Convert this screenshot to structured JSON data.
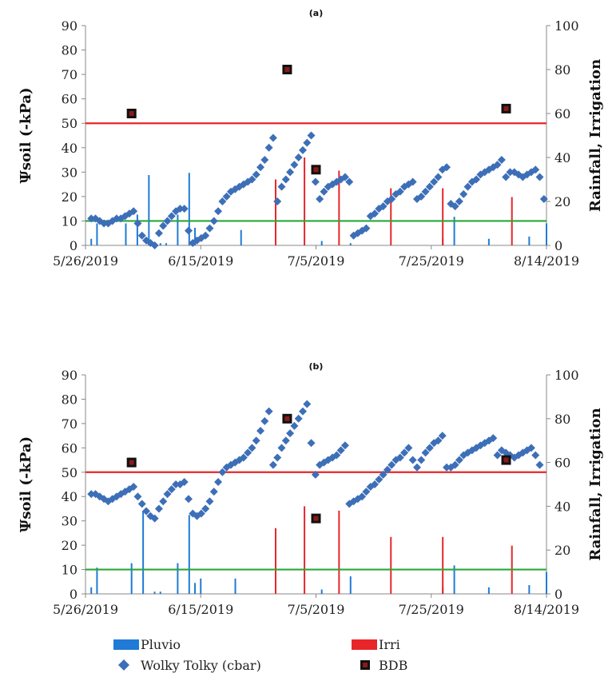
{
  "chart_data": [
    {
      "panel": "(a)",
      "type": "combo",
      "ylabel_left": "Ψsoil (-kPa)",
      "ylabel_right": "Rainfall, Irrigation",
      "x_ticks": [
        "5/26/2019",
        "6/15/2019",
        "7/5/2019",
        "7/25/2019",
        "8/14/2019"
      ],
      "xlim": [
        "2019-05-26",
        "2019-08-14"
      ],
      "ylim_left": [
        0,
        90
      ],
      "ylim_right": [
        0,
        100
      ],
      "y_ticks_left": [
        "0",
        "10",
        "20",
        "30",
        "40",
        "50",
        "60",
        "70",
        "80",
        "90"
      ],
      "y_ticks_right": [
        "0",
        "20",
        "40",
        "60",
        "80",
        "100"
      ],
      "hlines": [
        {
          "value": 50,
          "color": "#e8262a"
        },
        {
          "value": 10,
          "color": "#2aa63a"
        }
      ],
      "pluvio": [
        {
          "date": "2019-05-27",
          "value": 3
        },
        {
          "date": "2019-05-28",
          "value": 10
        },
        {
          "date": "2019-06-02",
          "value": 10
        },
        {
          "date": "2019-06-04",
          "value": 14
        },
        {
          "date": "2019-06-06",
          "value": 32
        },
        {
          "date": "2019-06-08",
          "value": 1
        },
        {
          "date": "2019-06-09",
          "value": 1
        },
        {
          "date": "2019-06-11",
          "value": 14
        },
        {
          "date": "2019-06-13",
          "value": 33
        },
        {
          "date": "2019-06-14",
          "value": 8
        },
        {
          "date": "2019-06-22",
          "value": 7
        },
        {
          "date": "2019-07-06",
          "value": 2
        },
        {
          "date": "2019-07-11",
          "value": 1
        },
        {
          "date": "2019-07-27",
          "value": 3
        },
        {
          "date": "2019-07-29",
          "value": 13
        },
        {
          "date": "2019-08-04",
          "value": 3
        },
        {
          "date": "2019-08-11",
          "value": 4
        },
        {
          "date": "2019-08-14",
          "value": 10
        }
      ],
      "irri": [
        {
          "date": "2019-06-28",
          "value": 30
        },
        {
          "date": "2019-07-03",
          "value": 40
        },
        {
          "date": "2019-07-09",
          "value": 34
        },
        {
          "date": "2019-07-18",
          "value": 26
        },
        {
          "date": "2019-07-27",
          "value": 26
        },
        {
          "date": "2019-08-08",
          "value": 22
        }
      ],
      "bdb": [
        {
          "date": "2019-06-03",
          "value": 54
        },
        {
          "date": "2019-06-30",
          "value": 72
        },
        {
          "date": "2019-07-05",
          "value": 31
        },
        {
          "date": "2019-08-07",
          "value": 56
        }
      ],
      "wolky": [
        [
          0,
          11
        ],
        [
          1,
          11
        ],
        [
          2,
          10
        ],
        [
          3,
          9
        ],
        [
          4,
          9
        ],
        [
          5,
          10
        ],
        [
          6,
          11
        ],
        [
          7,
          11
        ],
        [
          8,
          12
        ],
        [
          9,
          13
        ],
        [
          10,
          14
        ],
        [
          11,
          9
        ],
        [
          12,
          4
        ],
        [
          13,
          2
        ],
        [
          14,
          1
        ],
        [
          15,
          0
        ],
        [
          16,
          5
        ],
        [
          17,
          8
        ],
        [
          18,
          10
        ],
        [
          19,
          12
        ],
        [
          20,
          14
        ],
        [
          21,
          15
        ],
        [
          22,
          15
        ],
        [
          23,
          6
        ],
        [
          24,
          1
        ],
        [
          25,
          2
        ],
        [
          26,
          3
        ],
        [
          27,
          4
        ],
        [
          28,
          7
        ],
        [
          29,
          10
        ],
        [
          30,
          14
        ],
        [
          31,
          18
        ],
        [
          32,
          20
        ],
        [
          33,
          22
        ],
        [
          34,
          23
        ],
        [
          35,
          24
        ],
        [
          36,
          25
        ],
        [
          37,
          26
        ],
        [
          38,
          27
        ],
        [
          39,
          29
        ],
        [
          40,
          32
        ],
        [
          41,
          35
        ],
        [
          42,
          40
        ],
        [
          43,
          44
        ],
        [
          44,
          18
        ],
        [
          45,
          24
        ],
        [
          46,
          27
        ],
        [
          47,
          30
        ],
        [
          48,
          33
        ],
        [
          49,
          36
        ],
        [
          50,
          39
        ],
        [
          51,
          42
        ],
        [
          52,
          45
        ],
        [
          53,
          26
        ],
        [
          54,
          19
        ],
        [
          55,
          22
        ],
        [
          56,
          24
        ],
        [
          57,
          25
        ],
        [
          58,
          26
        ],
        [
          59,
          27
        ],
        [
          60,
          28
        ],
        [
          61,
          26
        ],
        [
          62,
          4
        ],
        [
          63,
          5
        ],
        [
          64,
          6
        ],
        [
          65,
          7
        ],
        [
          66,
          12
        ],
        [
          67,
          13
        ],
        [
          68,
          15
        ],
        [
          69,
          16
        ],
        [
          70,
          18
        ],
        [
          71,
          19
        ],
        [
          72,
          21
        ],
        [
          73,
          22
        ],
        [
          74,
          24
        ],
        [
          75,
          25
        ],
        [
          76,
          26
        ],
        [
          77,
          19
        ],
        [
          78,
          20
        ],
        [
          79,
          22
        ],
        [
          80,
          24
        ],
        [
          81,
          26
        ],
        [
          82,
          28
        ],
        [
          83,
          31
        ],
        [
          84,
          32
        ],
        [
          85,
          17
        ],
        [
          86,
          16
        ],
        [
          87,
          18
        ],
        [
          88,
          21
        ],
        [
          89,
          24
        ],
        [
          90,
          26
        ],
        [
          91,
          27
        ],
        [
          92,
          29
        ],
        [
          93,
          30
        ],
        [
          94,
          31
        ],
        [
          95,
          32
        ],
        [
          96,
          33
        ],
        [
          97,
          35
        ],
        [
          98,
          28
        ],
        [
          99,
          30
        ],
        [
          100,
          30
        ],
        [
          101,
          29
        ],
        [
          102,
          28
        ],
        [
          103,
          29
        ],
        [
          104,
          30
        ],
        [
          105,
          31
        ],
        [
          106,
          28
        ],
        [
          107,
          19
        ]
      ]
    },
    {
      "panel": "(b)",
      "type": "combo",
      "ylabel_left": "Ψsoil (-kPa)",
      "ylabel_right": "Rainfall, Irrigation",
      "x_ticks": [
        "5/26/2019",
        "6/15/2019",
        "7/5/2019",
        "7/25/2019",
        "8/14/2019"
      ],
      "xlim": [
        "2019-05-26",
        "2019-08-14"
      ],
      "ylim_left": [
        0,
        90
      ],
      "ylim_right": [
        0,
        100
      ],
      "y_ticks_left": [
        "0",
        "10",
        "20",
        "30",
        "40",
        "50",
        "60",
        "70",
        "80",
        "90"
      ],
      "y_ticks_right": [
        "0",
        "20",
        "40",
        "60",
        "80",
        "100"
      ],
      "hlines": [
        {
          "value": 50,
          "color": "#e8262a"
        },
        {
          "value": 10,
          "color": "#2aa63a"
        }
      ],
      "pluvio": [
        {
          "date": "2019-05-27",
          "value": 3
        },
        {
          "date": "2019-05-28",
          "value": 12
        },
        {
          "date": "2019-06-03",
          "value": 14
        },
        {
          "date": "2019-06-05",
          "value": 38
        },
        {
          "date": "2019-06-07",
          "value": 1
        },
        {
          "date": "2019-06-08",
          "value": 1
        },
        {
          "date": "2019-06-11",
          "value": 14
        },
        {
          "date": "2019-06-13",
          "value": 36
        },
        {
          "date": "2019-06-14",
          "value": 5
        },
        {
          "date": "2019-06-15",
          "value": 7
        },
        {
          "date": "2019-06-21",
          "value": 7
        },
        {
          "date": "2019-07-06",
          "value": 2
        },
        {
          "date": "2019-07-11",
          "value": 8
        },
        {
          "date": "2019-07-27",
          "value": 3
        },
        {
          "date": "2019-07-29",
          "value": 13
        },
        {
          "date": "2019-08-04",
          "value": 3
        },
        {
          "date": "2019-08-11",
          "value": 4
        },
        {
          "date": "2019-08-14",
          "value": 10
        }
      ],
      "irri": [
        {
          "date": "2019-06-28",
          "value": 30
        },
        {
          "date": "2019-07-03",
          "value": 40
        },
        {
          "date": "2019-07-09",
          "value": 38
        },
        {
          "date": "2019-07-18",
          "value": 26
        },
        {
          "date": "2019-07-27",
          "value": 26
        },
        {
          "date": "2019-08-08",
          "value": 22
        }
      ],
      "bdb": [
        {
          "date": "2019-06-03",
          "value": 54
        },
        {
          "date": "2019-06-30",
          "value": 72
        },
        {
          "date": "2019-07-05",
          "value": 31
        },
        {
          "date": "2019-08-07",
          "value": 55
        }
      ],
      "wolky": [
        [
          0,
          41
        ],
        [
          1,
          41
        ],
        [
          2,
          40
        ],
        [
          3,
          39
        ],
        [
          4,
          38
        ],
        [
          5,
          39
        ],
        [
          6,
          40
        ],
        [
          7,
          41
        ],
        [
          8,
          42
        ],
        [
          9,
          43
        ],
        [
          10,
          44
        ],
        [
          11,
          40
        ],
        [
          12,
          37
        ],
        [
          13,
          34
        ],
        [
          14,
          32
        ],
        [
          15,
          31
        ],
        [
          16,
          35
        ],
        [
          17,
          38
        ],
        [
          18,
          41
        ],
        [
          19,
          43
        ],
        [
          20,
          45
        ],
        [
          21,
          45
        ],
        [
          22,
          46
        ],
        [
          23,
          39
        ],
        [
          24,
          33
        ],
        [
          25,
          32
        ],
        [
          26,
          33
        ],
        [
          27,
          35
        ],
        [
          28,
          38
        ],
        [
          29,
          42
        ],
        [
          30,
          46
        ],
        [
          31,
          50
        ],
        [
          32,
          52
        ],
        [
          33,
          53
        ],
        [
          34,
          54
        ],
        [
          35,
          55
        ],
        [
          36,
          56
        ],
        [
          37,
          58
        ],
        [
          38,
          60
        ],
        [
          39,
          63
        ],
        [
          40,
          67
        ],
        [
          41,
          71
        ],
        [
          42,
          75
        ],
        [
          43,
          53
        ],
        [
          44,
          56
        ],
        [
          45,
          60
        ],
        [
          46,
          63
        ],
        [
          47,
          66
        ],
        [
          48,
          69
        ],
        [
          49,
          72
        ],
        [
          50,
          75
        ],
        [
          51,
          78
        ],
        [
          52,
          62
        ],
        [
          53,
          49
        ],
        [
          54,
          53
        ],
        [
          55,
          54
        ],
        [
          56,
          55
        ],
        [
          57,
          56
        ],
        [
          58,
          57
        ],
        [
          59,
          59
        ],
        [
          60,
          61
        ],
        [
          61,
          37
        ],
        [
          62,
          38
        ],
        [
          63,
          39
        ],
        [
          64,
          40
        ],
        [
          65,
          42
        ],
        [
          66,
          44
        ],
        [
          67,
          45
        ],
        [
          68,
          47
        ],
        [
          69,
          49
        ],
        [
          70,
          51
        ],
        [
          71,
          53
        ],
        [
          72,
          55
        ],
        [
          73,
          56
        ],
        [
          74,
          58
        ],
        [
          75,
          60
        ],
        [
          76,
          55
        ],
        [
          77,
          52
        ],
        [
          78,
          55
        ],
        [
          79,
          58
        ],
        [
          80,
          60
        ],
        [
          81,
          62
        ],
        [
          82,
          63
        ],
        [
          83,
          65
        ],
        [
          84,
          52
        ],
        [
          85,
          52
        ],
        [
          86,
          53
        ],
        [
          87,
          55
        ],
        [
          88,
          57
        ],
        [
          89,
          58
        ],
        [
          90,
          59
        ],
        [
          91,
          60
        ],
        [
          92,
          61
        ],
        [
          93,
          62
        ],
        [
          94,
          63
        ],
        [
          95,
          64
        ],
        [
          96,
          57
        ],
        [
          97,
          59
        ],
        [
          98,
          58
        ],
        [
          99,
          57
        ],
        [
          100,
          56
        ],
        [
          101,
          57
        ],
        [
          102,
          58
        ],
        [
          103,
          59
        ],
        [
          104,
          60
        ],
        [
          105,
          57
        ],
        [
          106,
          53
        ]
      ]
    }
  ],
  "legend": {
    "pluvio": "Pluvio",
    "irri": "Irri",
    "wolky": "Wolky Tolky (cbar)",
    "bdb": "BDB"
  },
  "colors": {
    "pluvio": "#1f7bd6",
    "irri": "#e8262a",
    "wolky": "#3d6fb8",
    "bdb": "#111111",
    "bdb_inner": "#8b1a1a",
    "green": "#2aa63a",
    "red": "#e8262a"
  }
}
